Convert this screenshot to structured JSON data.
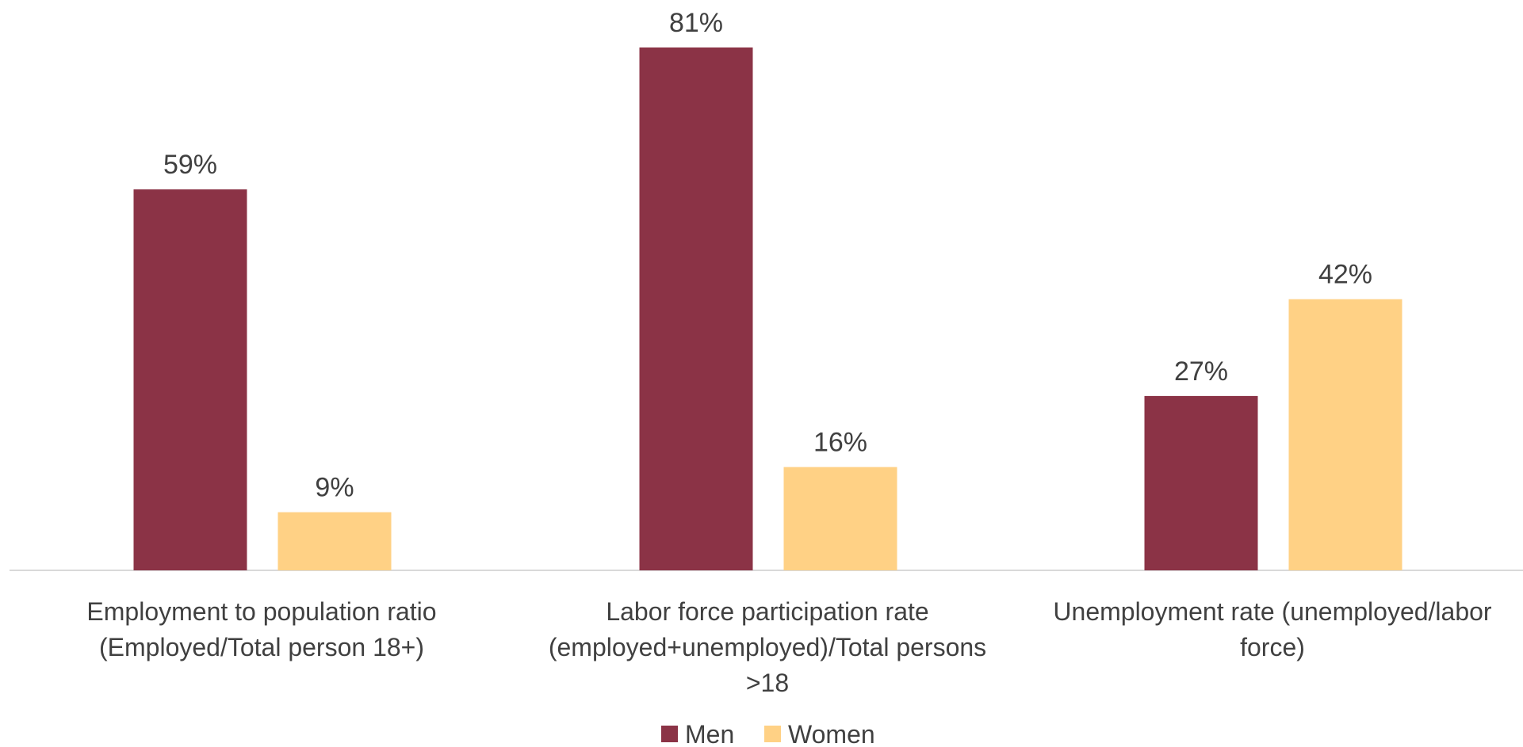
{
  "chart_data": {
    "type": "bar",
    "title": "",
    "xlabel": "",
    "ylabel": "",
    "ylim": [
      0,
      88
    ],
    "grid": false,
    "legend_position": "bottom",
    "categories": [
      [
        "Employment to population ratio",
        "(Employed/Total person 18+)"
      ],
      [
        "Labor force participation rate",
        "(employed+unemployed)/Total persons",
        ">18"
      ],
      [
        "Unemployment rate (unemployed/labor",
        "force)"
      ]
    ],
    "series": [
      {
        "name": "Men",
        "color": "#8B3346",
        "values": [
          59,
          81,
          27
        ]
      },
      {
        "name": "Women",
        "color": "#FFD185",
        "values": [
          9,
          16,
          42
        ]
      }
    ],
    "value_suffix": "%"
  }
}
